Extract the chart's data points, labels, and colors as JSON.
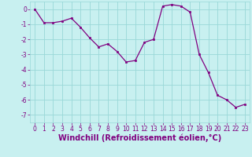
{
  "x": [
    0,
    1,
    2,
    3,
    4,
    5,
    6,
    7,
    8,
    9,
    10,
    11,
    12,
    13,
    14,
    15,
    16,
    17,
    18,
    19,
    20,
    21,
    22,
    23
  ],
  "y": [
    0.0,
    -0.9,
    -0.9,
    -0.8,
    -0.6,
    -1.2,
    -1.9,
    -2.5,
    -2.3,
    -2.8,
    -3.5,
    -3.4,
    -2.2,
    -2.0,
    0.2,
    0.3,
    0.2,
    -0.2,
    -3.0,
    -4.2,
    -5.7,
    -6.0,
    -6.5,
    -6.3
  ],
  "line_color": "#800080",
  "marker_color": "#800080",
  "bg_color": "#c8f0f0",
  "grid_color": "#99d8d8",
  "xlabel": "Windchill (Refroidissement éolien,°C)",
  "ylim": [
    -7.5,
    0.5
  ],
  "xlim": [
    -0.5,
    23.5
  ],
  "yticks": [
    0,
    -1,
    -2,
    -3,
    -4,
    -5,
    -6,
    -7
  ],
  "xticks": [
    0,
    1,
    2,
    3,
    4,
    5,
    6,
    7,
    8,
    9,
    10,
    11,
    12,
    13,
    14,
    15,
    16,
    17,
    18,
    19,
    20,
    21,
    22,
    23
  ],
  "tick_label_fontsize": 5.5,
  "xlabel_fontsize": 7.0,
  "tick_color": "#800080",
  "xlabel_color": "#800080"
}
